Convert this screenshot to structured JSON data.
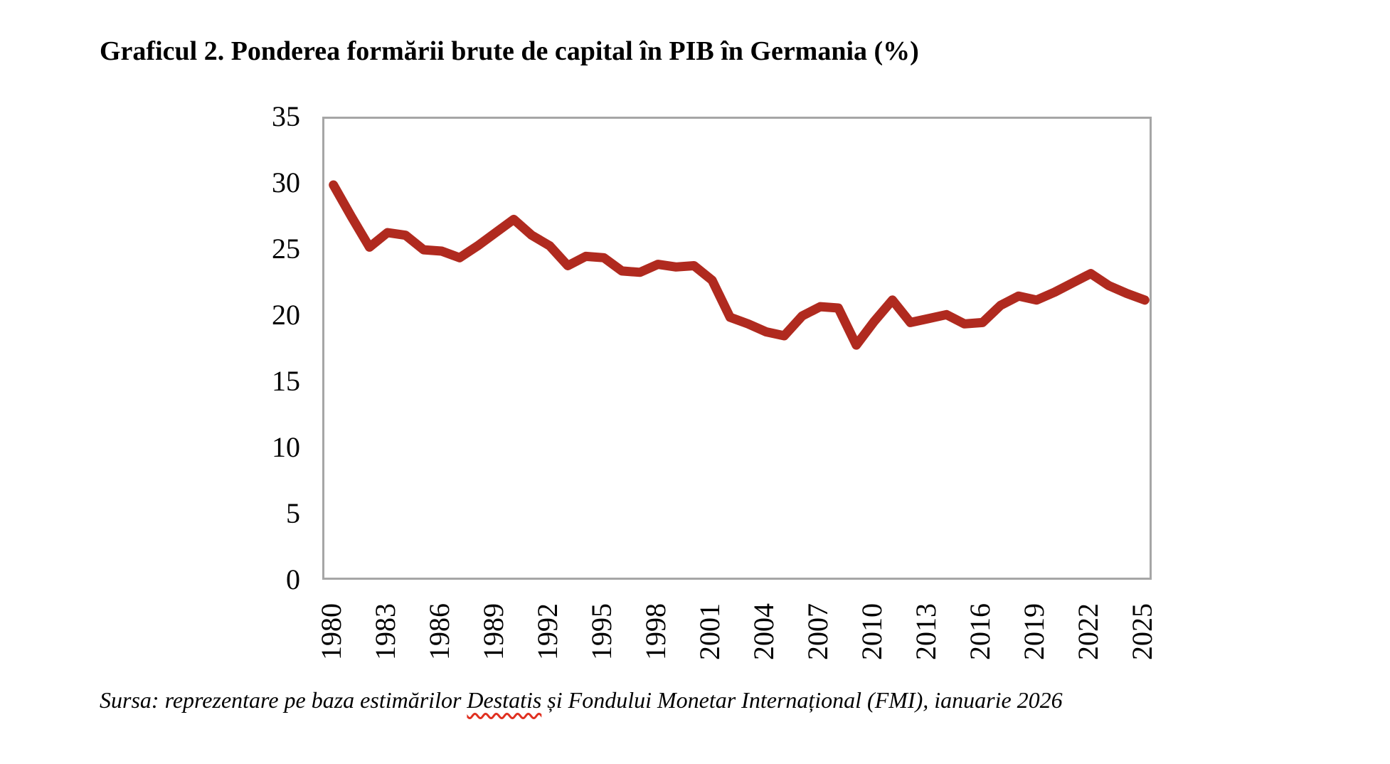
{
  "title": "Graficul 2. Ponderea formării brute de capital în PIB în Germania (%)",
  "source": {
    "prefix": "Sursa: reprezentare pe baza estimărilor ",
    "flagged_word": "Destatis",
    "suffix": " și Fondului Monetar Internațional (FMI), ianuarie 2026"
  },
  "colors": {
    "line": "#b02a1f",
    "axis": "#a6a6a6",
    "text": "#000000",
    "spellcheck_underline": "#e03020",
    "background": "#ffffff"
  },
  "chart_data": {
    "type": "line",
    "title": "Graficul 2. Ponderea formării brute de capital în PIB în Germania (%)",
    "xlabel": "",
    "ylabel": "",
    "x": [
      1980,
      1981,
      1982,
      1983,
      1984,
      1985,
      1986,
      1987,
      1988,
      1989,
      1990,
      1991,
      1992,
      1993,
      1994,
      1995,
      1996,
      1997,
      1998,
      1999,
      2000,
      2001,
      2002,
      2003,
      2004,
      2005,
      2006,
      2007,
      2008,
      2009,
      2010,
      2011,
      2012,
      2013,
      2014,
      2015,
      2016,
      2017,
      2018,
      2019,
      2020,
      2021,
      2022,
      2023,
      2024,
      2025
    ],
    "values": [
      30.0,
      27.6,
      25.3,
      26.4,
      26.2,
      25.1,
      25.0,
      24.5,
      25.4,
      26.4,
      27.4,
      26.2,
      25.4,
      23.9,
      24.6,
      24.5,
      23.5,
      23.4,
      24.0,
      23.8,
      23.9,
      22.8,
      20.0,
      19.5,
      18.9,
      18.6,
      20.1,
      20.8,
      20.7,
      17.9,
      19.7,
      21.3,
      19.6,
      19.9,
      20.2,
      19.5,
      19.6,
      20.9,
      21.6,
      21.3,
      21.9,
      22.6,
      23.3,
      22.4,
      21.8,
      21.3
    ],
    "xticks": [
      1980,
      1983,
      1986,
      1989,
      1992,
      1995,
      1998,
      2001,
      2004,
      2007,
      2010,
      2013,
      2016,
      2019,
      2022,
      2025
    ],
    "yticks": [
      0,
      5,
      10,
      15,
      20,
      25,
      30,
      35
    ],
    "ylim": [
      0,
      35
    ],
    "grid": false,
    "legend": "none",
    "line_color": "#b02a1f",
    "line_width": 13
  }
}
